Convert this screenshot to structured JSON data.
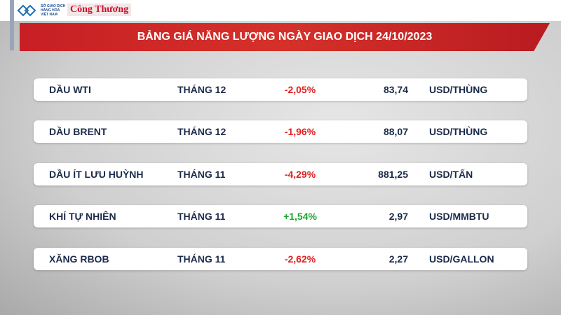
{
  "header": {
    "logo_text": "SỞ GIAO DỊCH HÀNG HÓA VIỆT NAM",
    "brand": "Công Thương",
    "title": "BẢNG GIÁ NĂNG LƯỢNG NGÀY GIAO DỊCH 24/10/2023"
  },
  "table": {
    "rows": [
      [
        "DẦU WTI",
        "THÁNG 12",
        "-2,05%",
        "83,74",
        "USD/THÙNG"
      ],
      [
        "DẦU BRENT",
        "THÁNG 12",
        "-1,96%",
        "88,07",
        "USD/THÙNG"
      ],
      [
        "DẦU ÍT LƯU HUỲNH",
        "THÁNG 11",
        "-4,29%",
        "881,25",
        "USD/TẤN"
      ],
      [
        "KHÍ TỰ NHIÊN",
        "THÁNG 11",
        "+1,54%",
        "2,97",
        "USD/MMBTU"
      ],
      [
        "XĂNG RBOB",
        "THÁNG 11",
        "-2,62%",
        "2,27",
        "USD/GALLON"
      ]
    ]
  }
}
